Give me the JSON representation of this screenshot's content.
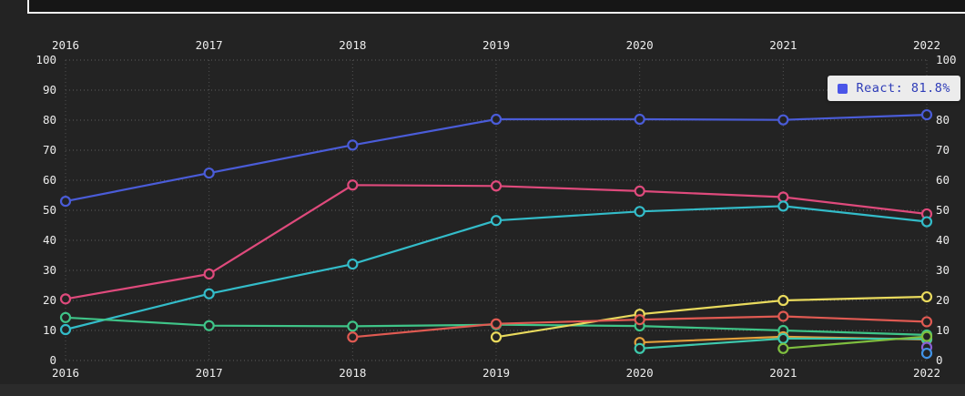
{
  "tooltip": {
    "label": "React: 81.8%",
    "swatch_color": "#4a55e8",
    "text_color": "#2e3cb8"
  },
  "colors": {
    "background": "#232323",
    "grid_horizontal": "#5c5c5c",
    "grid_vertical": "#525252",
    "axis_text": "#ededed",
    "topbar_border": "#f2f2f2"
  },
  "chart_data": {
    "type": "line",
    "x_labels": [
      "2016",
      "2017",
      "2018",
      "2019",
      "2020",
      "2021",
      "2022"
    ],
    "y_ticks": [
      0,
      10,
      20,
      30,
      40,
      50,
      60,
      70,
      80,
      90,
      100
    ],
    "ylim": [
      0,
      100
    ],
    "grid": "dotted",
    "axis_labels_position": "years on top and bottom, percent ticks on left and right",
    "legend_position": "tooltip top-right",
    "series": [
      {
        "name": "react",
        "color": "#4a5cd8",
        "values": [
          53.0,
          62.4,
          71.7,
          80.3,
          80.3,
          80.1,
          81.8
        ]
      },
      {
        "name": "pink-line",
        "color": "#df4a7c",
        "values": [
          20.5,
          28.8,
          58.4,
          58.1,
          56.4,
          54.4,
          48.8
        ]
      },
      {
        "name": "cyan-line",
        "color": "#33bcc9",
        "values": [
          10.3,
          22.2,
          32.1,
          46.6,
          49.6,
          51.4,
          46.2
        ]
      },
      {
        "name": "green-line",
        "color": "#3fc488",
        "values": [
          14.3,
          11.6,
          11.4,
          11.9,
          11.5,
          10.0,
          8.5
        ]
      },
      {
        "name": "yellow-line",
        "color": "#e9da5d",
        "values": [
          null,
          null,
          null,
          7.8,
          15.4,
          20.0,
          21.2
        ]
      },
      {
        "name": "salmon-line",
        "color": "#e05a52",
        "values": [
          null,
          null,
          7.8,
          12.2,
          13.6,
          14.7,
          12.9
        ]
      },
      {
        "name": "orange-line",
        "color": "#e2a03c",
        "values": [
          null,
          null,
          null,
          null,
          6.0,
          7.9,
          7.0
        ]
      },
      {
        "name": "teal-line",
        "color": "#3ec9ad",
        "values": [
          null,
          null,
          null,
          null,
          4.0,
          7.3,
          7.2
        ]
      },
      {
        "name": "lightgreen-line",
        "color": "#7fbf3f",
        "values": [
          null,
          null,
          null,
          null,
          null,
          4.0,
          8.0
        ]
      },
      {
        "name": "purple-point",
        "color": "#8a5fd4",
        "values": [
          null,
          null,
          null,
          null,
          null,
          null,
          4.4
        ]
      },
      {
        "name": "blue-point",
        "color": "#4193e6",
        "values": [
          null,
          null,
          null,
          null,
          null,
          null,
          2.4
        ]
      }
    ]
  }
}
